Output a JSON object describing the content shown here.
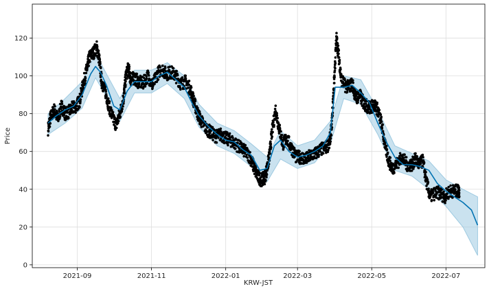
{
  "chart_data": {
    "type": "line",
    "title": "",
    "xlabel": "KRW-JST",
    "ylabel": "Price",
    "grid": true,
    "legend": "none",
    "x_range": [
      "2021-07-26",
      "2022-08-02"
    ],
    "ylim": [
      -1.5,
      138
    ],
    "x_ticks": [
      {
        "date": "2021-09-01",
        "label": "2021-09"
      },
      {
        "date": "2021-11-01",
        "label": "2021-11"
      },
      {
        "date": "2022-01-01",
        "label": "2022-01"
      },
      {
        "date": "2022-03-01",
        "label": "2022-03"
      },
      {
        "date": "2022-05-01",
        "label": "2022-05"
      },
      {
        "date": "2022-07-01",
        "label": "2022-07"
      }
    ],
    "y_ticks": [
      0,
      20,
      40,
      60,
      80,
      100,
      120
    ],
    "colors": {
      "observed": "#000000",
      "forecast": "#0072B2",
      "interval": "#9ecae1"
    },
    "series": [
      {
        "kind": "forecast",
        "x": [
          "2021-08-08",
          "2021-08-15",
          "2021-08-22",
          "2021-08-29",
          "2021-09-05",
          "2021-09-12",
          "2021-09-16",
          "2021-09-20",
          "2021-09-25",
          "2021-10-01",
          "2021-10-06",
          "2021-10-12",
          "2021-10-18",
          "2021-10-24",
          "2021-11-01",
          "2021-11-07",
          "2021-11-14",
          "2021-11-21",
          "2021-11-28",
          "2021-12-04",
          "2021-12-10",
          "2021-12-18",
          "2021-12-25",
          "2022-01-01",
          "2022-01-08",
          "2022-01-15",
          "2022-01-22",
          "2022-01-29",
          "2022-02-04",
          "2022-02-10",
          "2022-02-15",
          "2022-02-22",
          "2022-03-01",
          "2022-03-08",
          "2022-03-15",
          "2022-03-22",
          "2022-03-28",
          "2022-04-01",
          "2022-04-08",
          "2022-04-15",
          "2022-04-22",
          "2022-04-29",
          "2022-05-06",
          "2022-05-13",
          "2022-05-20",
          "2022-05-27",
          "2022-06-03",
          "2022-06-10",
          "2022-06-17",
          "2022-06-24",
          "2022-07-01",
          "2022-07-08",
          "2022-07-15",
          "2022-07-22",
          "2022-07-27"
        ],
        "y": [
          75,
          79,
          82,
          84,
          90,
          101,
          105,
          102,
          95,
          84,
          82,
          92,
          97,
          97,
          97,
          100,
          102,
          98,
          94,
          86,
          79,
          73,
          69,
          66,
          65,
          61,
          58,
          50,
          51,
          63,
          66,
          60,
          57,
          58,
          60,
          63,
          70,
          94,
          94,
          95,
          91,
          86,
          75,
          65,
          57,
          53,
          53,
          52,
          50,
          43,
          39,
          36,
          33,
          29,
          21
        ]
      },
      {
        "kind": "interval-upper",
        "x": [
          "2021-08-08",
          "2021-08-22",
          "2021-09-05",
          "2021-09-16",
          "2021-09-25",
          "2021-10-06",
          "2021-10-18",
          "2021-11-01",
          "2021-11-14",
          "2021-11-28",
          "2021-12-10",
          "2021-12-25",
          "2022-01-08",
          "2022-01-22",
          "2022-02-04",
          "2022-02-15",
          "2022-03-01",
          "2022-03-15",
          "2022-03-28",
          "2022-04-08",
          "2022-04-22",
          "2022-05-06",
          "2022-05-20",
          "2022-06-03",
          "2022-06-17",
          "2022-07-01",
          "2022-07-15",
          "2022-07-27"
        ],
        "y": [
          80,
          88,
          97,
          112,
          101,
          88,
          103,
          103,
          107,
          100,
          85,
          75,
          71,
          64,
          57,
          71,
          63,
          66,
          76,
          100,
          98,
          82,
          63,
          59,
          55,
          45,
          40,
          36
        ]
      },
      {
        "kind": "interval-lower",
        "x": [
          "2021-08-08",
          "2021-08-22",
          "2021-09-05",
          "2021-09-16",
          "2021-09-25",
          "2021-10-06",
          "2021-10-18",
          "2021-11-01",
          "2021-11-14",
          "2021-11-28",
          "2021-12-10",
          "2021-12-25",
          "2022-01-08",
          "2022-01-22",
          "2022-02-04",
          "2022-02-15",
          "2022-03-01",
          "2022-03-15",
          "2022-03-28",
          "2022-04-08",
          "2022-04-22",
          "2022-05-06",
          "2022-05-20",
          "2022-06-03",
          "2022-06-17",
          "2022-07-01",
          "2022-07-15",
          "2022-07-27"
        ],
        "y": [
          69,
          75,
          83,
          99,
          89,
          76,
          91,
          91,
          96,
          88,
          73,
          63,
          59,
          52,
          44,
          56,
          51,
          54,
          64,
          88,
          85,
          69,
          50,
          47,
          40,
          31,
          20,
          5
        ]
      },
      {
        "kind": "observed",
        "x": [
          "2021-08-08",
          "2021-08-10",
          "2021-08-13",
          "2021-08-16",
          "2021-08-19",
          "2021-08-22",
          "2021-08-25",
          "2021-08-28",
          "2021-08-31",
          "2021-09-03",
          "2021-09-06",
          "2021-09-09",
          "2021-09-11",
          "2021-09-14",
          "2021-09-17",
          "2021-09-19",
          "2021-09-21",
          "2021-09-24",
          "2021-09-27",
          "2021-09-30",
          "2021-10-03",
          "2021-10-06",
          "2021-10-09",
          "2021-10-11",
          "2021-10-13",
          "2021-10-15",
          "2021-10-18",
          "2021-10-21",
          "2021-10-25",
          "2021-10-29",
          "2021-11-02",
          "2021-11-05",
          "2021-11-09",
          "2021-11-13",
          "2021-11-17",
          "2021-11-21",
          "2021-11-25",
          "2021-11-29",
          "2021-12-03",
          "2021-12-06",
          "2021-12-09",
          "2021-12-12",
          "2021-12-16",
          "2021-12-20",
          "2021-12-24",
          "2021-12-28",
          "2022-01-01",
          "2022-01-05",
          "2022-01-09",
          "2022-01-13",
          "2022-01-17",
          "2022-01-21",
          "2022-01-24",
          "2022-01-27",
          "2022-01-30",
          "2022-02-02",
          "2022-02-04",
          "2022-02-06",
          "2022-02-08",
          "2022-02-11",
          "2022-02-14",
          "2022-02-17",
          "2022-02-20",
          "2022-02-24",
          "2022-02-28",
          "2022-03-04",
          "2022-03-08",
          "2022-03-12",
          "2022-03-16",
          "2022-03-20",
          "2022-03-24",
          "2022-03-27",
          "2022-03-29",
          "2022-03-31",
          "2022-04-02",
          "2022-04-04",
          "2022-04-06",
          "2022-04-09",
          "2022-04-12",
          "2022-04-15",
          "2022-04-18",
          "2022-04-21",
          "2022-04-24",
          "2022-04-27",
          "2022-04-30",
          "2022-05-03",
          "2022-05-06",
          "2022-05-09",
          "2022-05-12",
          "2022-05-15",
          "2022-05-18",
          "2022-05-22",
          "2022-05-26",
          "2022-05-30",
          "2022-06-03",
          "2022-06-06",
          "2022-06-09",
          "2022-06-12",
          "2022-06-15",
          "2022-06-18",
          "2022-06-22",
          "2022-06-26",
          "2022-06-30",
          "2022-07-04",
          "2022-07-08",
          "2022-07-11"
        ],
        "y": [
          72,
          78,
          82,
          77,
          84,
          80,
          81,
          83,
          84,
          87,
          96,
          104,
          110,
          112,
          115,
          109,
          97,
          92,
          84,
          78,
          74,
          80,
          88,
          100,
          104,
          98,
          99,
          97,
          96,
          100,
          95,
          100,
          104,
          101,
          102,
          100,
          96,
          97,
          93,
          86,
          80,
          76,
          72,
          70,
          68,
          69,
          67,
          66,
          64,
          62,
          60,
          57,
          52,
          47,
          45,
          46,
          51,
          58,
          70,
          82,
          72,
          64,
          67,
          62,
          57,
          57,
          56,
          58,
          59,
          61,
          62,
          64,
          72,
          96,
          120,
          110,
          98,
          95,
          94,
          96,
          88,
          90,
          86,
          84,
          83,
          85,
          82,
          75,
          63,
          55,
          51,
          54,
          57,
          53,
          53,
          56,
          53,
          55,
          44,
          36,
          38,
          38,
          36,
          39,
          39,
          39
        ]
      }
    ]
  }
}
